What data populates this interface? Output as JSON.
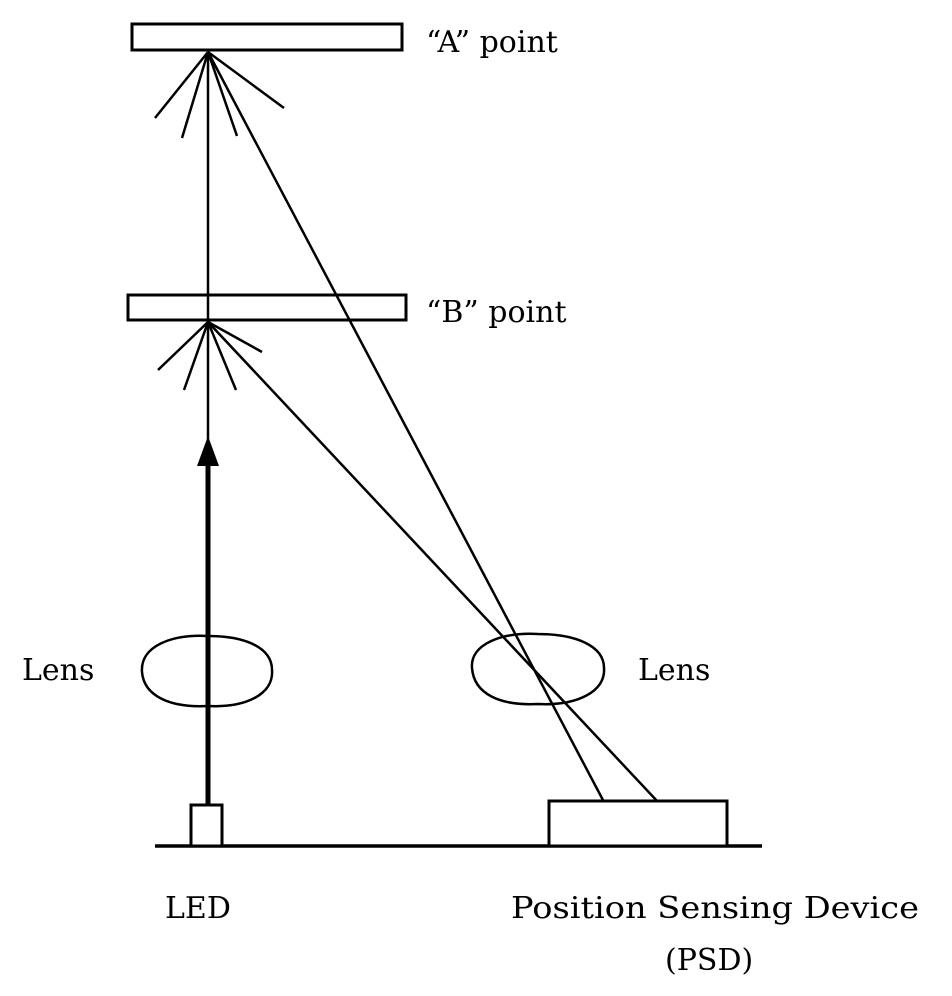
{
  "labels": {
    "point_a": "“A” point",
    "point_b": "“B” point",
    "lens_left": "Lens",
    "lens_right": "Lens",
    "led": "LED",
    "psd_line1": "Position Sensing Device",
    "psd_line2": "(PSD)"
  },
  "colors": {
    "stroke": "#000000",
    "background": "#ffffff"
  }
}
